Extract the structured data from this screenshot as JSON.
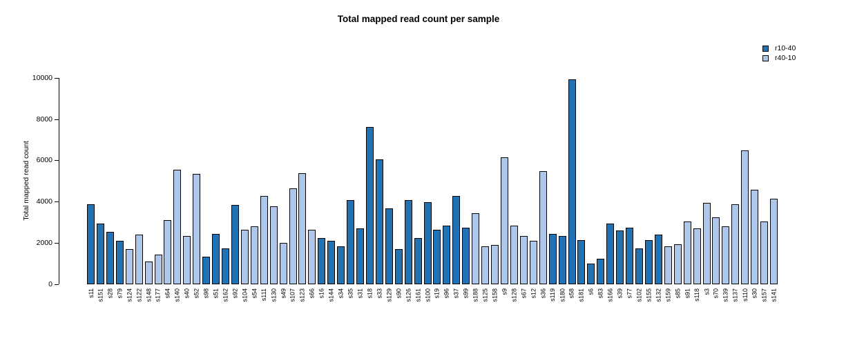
{
  "chart_data": {
    "type": "bar",
    "title": "Total mapped read count per sample",
    "xlabel": "",
    "ylabel": "Total mapped read count",
    "ylim": [
      0,
      10000
    ],
    "y_ticks": [
      0,
      2000,
      4000,
      6000,
      8000,
      10000
    ],
    "grid": false,
    "bar_border_color": "#000000",
    "legend": {
      "position": "top-right",
      "items": [
        {
          "name": "r10-40",
          "color": "#2171b5"
        },
        {
          "name": "r40-10",
          "color": "#aec7e8"
        }
      ]
    },
    "series_colors": {
      "r10-40": "#2171b5",
      "r40-10": "#aec7e8"
    },
    "categories": [
      "s11",
      "s151",
      "s28",
      "s79",
      "s124",
      "s122",
      "s148",
      "s177",
      "s64",
      "s140",
      "s40",
      "s52",
      "s98",
      "s51",
      "s162",
      "s92",
      "s104",
      "s54",
      "s111",
      "s130",
      "s49",
      "s107",
      "s123",
      "s66",
      "s16",
      "s144",
      "s34",
      "s35",
      "s31",
      "s18",
      "s33",
      "s129",
      "s90",
      "s126",
      "s161",
      "s100",
      "s19",
      "s96",
      "s37",
      "s99",
      "s188",
      "s125",
      "s158",
      "s9",
      "s128",
      "s67",
      "s12",
      "s36",
      "s119",
      "s180",
      "s58",
      "s181",
      "s6",
      "s83",
      "s166",
      "s39",
      "s77",
      "s102",
      "s155",
      "s132",
      "s159",
      "s85",
      "s91",
      "s118",
      "s3",
      "s70",
      "s139",
      "s137",
      "s110",
      "s30",
      "s157",
      "s141"
    ],
    "bars": [
      {
        "sample": "s11",
        "group": "r10-40",
        "value": 3900
      },
      {
        "sample": "s151",
        "group": "r10-40",
        "value": 2950
      },
      {
        "sample": "s28",
        "group": "r10-40",
        "value": 2550
      },
      {
        "sample": "s79",
        "group": "r10-40",
        "value": 2100
      },
      {
        "sample": "s124",
        "group": "r40-10",
        "value": 1700
      },
      {
        "sample": "s122",
        "group": "r40-10",
        "value": 2400
      },
      {
        "sample": "s148",
        "group": "r40-10",
        "value": 1100
      },
      {
        "sample": "s177",
        "group": "r40-10",
        "value": 1450
      },
      {
        "sample": "s64",
        "group": "r40-10",
        "value": 3100
      },
      {
        "sample": "s140",
        "group": "r40-10",
        "value": 5550
      },
      {
        "sample": "s40",
        "group": "r40-10",
        "value": 2350
      },
      {
        "sample": "s52",
        "group": "r40-10",
        "value": 5350
      },
      {
        "sample": "s98",
        "group": "r10-40",
        "value": 1350
      },
      {
        "sample": "s51",
        "group": "r10-40",
        "value": 2450
      },
      {
        "sample": "s162",
        "group": "r10-40",
        "value": 1750
      },
      {
        "sample": "s92",
        "group": "r10-40",
        "value": 3850
      },
      {
        "sample": "s104",
        "group": "r40-10",
        "value": 2650
      },
      {
        "sample": "s54",
        "group": "r40-10",
        "value": 2800
      },
      {
        "sample": "s111",
        "group": "r40-10",
        "value": 4300
      },
      {
        "sample": "s130",
        "group": "r40-10",
        "value": 3800
      },
      {
        "sample": "s49",
        "group": "r40-10",
        "value": 2000
      },
      {
        "sample": "s107",
        "group": "r40-10",
        "value": 4650
      },
      {
        "sample": "s123",
        "group": "r40-10",
        "value": 5400
      },
      {
        "sample": "s66",
        "group": "r40-10",
        "value": 2650
      },
      {
        "sample": "s16",
        "group": "r10-40",
        "value": 2250
      },
      {
        "sample": "s144",
        "group": "r10-40",
        "value": 2100
      },
      {
        "sample": "s34",
        "group": "r10-40",
        "value": 1850
      },
      {
        "sample": "s35",
        "group": "r10-40",
        "value": 4100
      },
      {
        "sample": "s31",
        "group": "r10-40",
        "value": 2700
      },
      {
        "sample": "s18",
        "group": "r10-40",
        "value": 7650
      },
      {
        "sample": "s33",
        "group": "r10-40",
        "value": 6050
      },
      {
        "sample": "s129",
        "group": "r10-40",
        "value": 3700
      },
      {
        "sample": "s90",
        "group": "r10-40",
        "value": 1700
      },
      {
        "sample": "s126",
        "group": "r10-40",
        "value": 4100
      },
      {
        "sample": "s161",
        "group": "r10-40",
        "value": 2250
      },
      {
        "sample": "s100",
        "group": "r10-40",
        "value": 4000
      },
      {
        "sample": "s19",
        "group": "r10-40",
        "value": 2650
      },
      {
        "sample": "s96",
        "group": "r10-40",
        "value": 2850
      },
      {
        "sample": "s37",
        "group": "r10-40",
        "value": 4300
      },
      {
        "sample": "s99",
        "group": "r10-40",
        "value": 2750
      },
      {
        "sample": "s188",
        "group": "r40-10",
        "value": 3450
      },
      {
        "sample": "s125",
        "group": "r40-10",
        "value": 1850
      },
      {
        "sample": "s158",
        "group": "r40-10",
        "value": 1900
      },
      {
        "sample": "s9",
        "group": "r40-10",
        "value": 6150
      },
      {
        "sample": "s128",
        "group": "r40-10",
        "value": 2850
      },
      {
        "sample": "s67",
        "group": "r40-10",
        "value": 2350
      },
      {
        "sample": "s12",
        "group": "r40-10",
        "value": 2100
      },
      {
        "sample": "s36",
        "group": "r40-10",
        "value": 5500
      },
      {
        "sample": "s119",
        "group": "r10-40",
        "value": 2450
      },
      {
        "sample": "s180",
        "group": "r10-40",
        "value": 2350
      },
      {
        "sample": "s58",
        "group": "r10-40",
        "value": 9950
      },
      {
        "sample": "s181",
        "group": "r10-40",
        "value": 2150
      },
      {
        "sample": "s6",
        "group": "r10-40",
        "value": 1000
      },
      {
        "sample": "s83",
        "group": "r10-40",
        "value": 1250
      },
      {
        "sample": "s166",
        "group": "r10-40",
        "value": 2950
      },
      {
        "sample": "s39",
        "group": "r10-40",
        "value": 2600
      },
      {
        "sample": "s77",
        "group": "r10-40",
        "value": 2750
      },
      {
        "sample": "s102",
        "group": "r10-40",
        "value": 1750
      },
      {
        "sample": "s155",
        "group": "r10-40",
        "value": 2150
      },
      {
        "sample": "s132",
        "group": "r10-40",
        "value": 2400
      },
      {
        "sample": "s159",
        "group": "r40-10",
        "value": 1850
      },
      {
        "sample": "s85",
        "group": "r40-10",
        "value": 1950
      },
      {
        "sample": "s91",
        "group": "r40-10",
        "value": 3050
      },
      {
        "sample": "s118",
        "group": "r40-10",
        "value": 2700
      },
      {
        "sample": "s3",
        "group": "r40-10",
        "value": 3950
      },
      {
        "sample": "s70",
        "group": "r40-10",
        "value": 3250
      },
      {
        "sample": "s139",
        "group": "r40-10",
        "value": 2800
      },
      {
        "sample": "s137",
        "group": "r40-10",
        "value": 3900
      },
      {
        "sample": "s110",
        "group": "r40-10",
        "value": 6500
      },
      {
        "sample": "s30",
        "group": "r40-10",
        "value": 4600
      },
      {
        "sample": "s157",
        "group": "r40-10",
        "value": 3050
      },
      {
        "sample": "s141",
        "group": "r40-10",
        "value": 4150
      }
    ]
  }
}
